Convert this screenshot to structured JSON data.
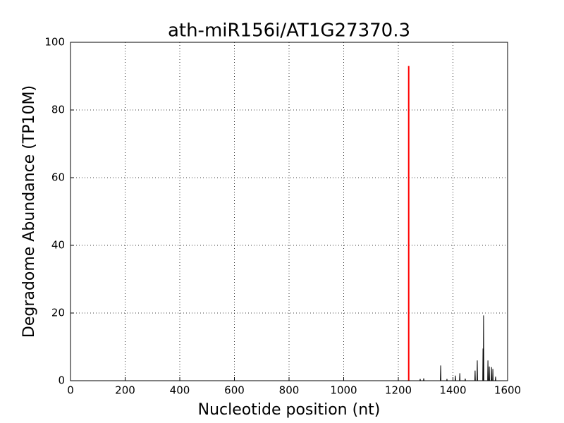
{
  "chart_data": {
    "type": "line",
    "title": "ath-miR156i/AT1G27370.3",
    "x_label": "Nucleotide position (nt)",
    "y_label": "Degradome Abundance (TP10M)",
    "xlim": [
      0,
      1600
    ],
    "ylim": [
      0,
      100
    ],
    "xticks": [
      0,
      200,
      400,
      600,
      800,
      1000,
      1200,
      1400,
      1600
    ],
    "yticks": [
      0,
      20,
      40,
      60,
      80,
      100
    ],
    "grid": true,
    "series": [
      {
        "color": "#000000",
        "x": [
          0,
          1279,
          1280,
          1281,
          1292,
          1293,
          1294,
          1354,
          1355,
          1356,
          1377,
          1378,
          1379,
          1408,
          1409,
          1410,
          1424,
          1425,
          1426,
          1444,
          1445,
          1446,
          1480,
          1481,
          1482,
          1488,
          1489,
          1490,
          1509,
          1510,
          1511,
          1512,
          1513,
          1527,
          1528,
          1529,
          1532,
          1533,
          1534,
          1540,
          1541,
          1542,
          1545,
          1546,
          1547,
          1555,
          1556,
          1557,
          1560
        ],
        "values": [
          0,
          0,
          0.5,
          0,
          0,
          0.7,
          0,
          0,
          4.5,
          0,
          0,
          0.5,
          0,
          0,
          1.5,
          0,
          0,
          2.2,
          0,
          0,
          0.6,
          0,
          0,
          3,
          0,
          0,
          6,
          0,
          0,
          9.5,
          0,
          19.3,
          0,
          0,
          6,
          0,
          0,
          4.2,
          0,
          0,
          4,
          0,
          0,
          3.5,
          0,
          0,
          1.2,
          0,
          0
        ]
      },
      {
        "color": "#ff0000",
        "x": [
          1238,
          1238
        ],
        "values": [
          0,
          93
        ]
      }
    ]
  }
}
